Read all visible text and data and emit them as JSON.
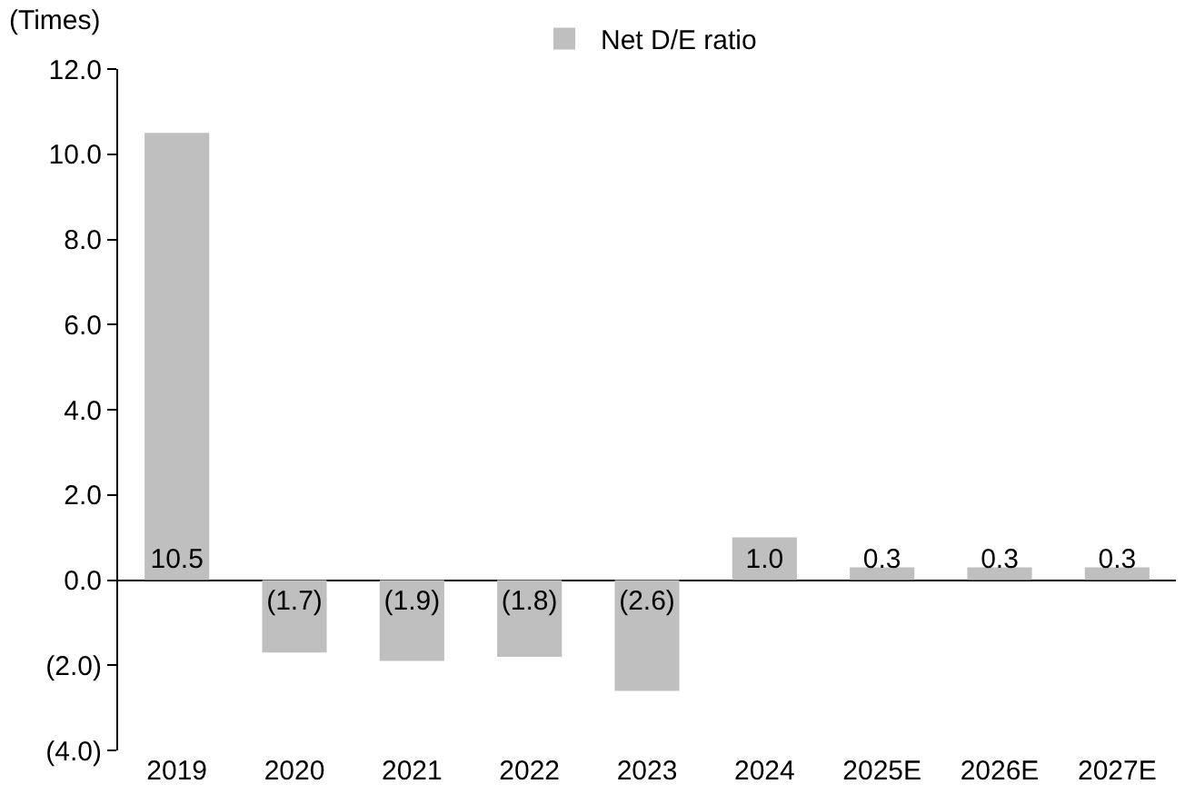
{
  "chart_data": {
    "type": "bar",
    "ylabel": "(Times)",
    "legend": "top",
    "categories": [
      "2019",
      "2020",
      "2021",
      "2022",
      "2023",
      "2024",
      "2025E",
      "2026E",
      "2027E"
    ],
    "series": [
      {
        "name": "Net D/E ratio",
        "color": "#bfbfbf",
        "values": [
          10.5,
          -1.7,
          -1.9,
          -1.8,
          -2.6,
          1.0,
          0.3,
          0.3,
          0.3
        ],
        "value_labels": [
          "10.5",
          "(1.7)",
          "(1.9)",
          "(1.8)",
          "(2.6)",
          "1.0",
          "0.3",
          "0.3",
          "0.3"
        ]
      }
    ],
    "ylim": [
      -4,
      12
    ],
    "yticks": [
      {
        "value": -4,
        "label": "(4.0)"
      },
      {
        "value": -2,
        "label": "(2.0)"
      },
      {
        "value": 0,
        "label": "0.0"
      },
      {
        "value": 2,
        "label": "2.0"
      },
      {
        "value": 4,
        "label": "4.0"
      },
      {
        "value": 6,
        "label": "6.0"
      },
      {
        "value": 8,
        "label": "8.0"
      },
      {
        "value": 10,
        "label": "10.0"
      },
      {
        "value": 12,
        "label": "12.0"
      }
    ]
  }
}
